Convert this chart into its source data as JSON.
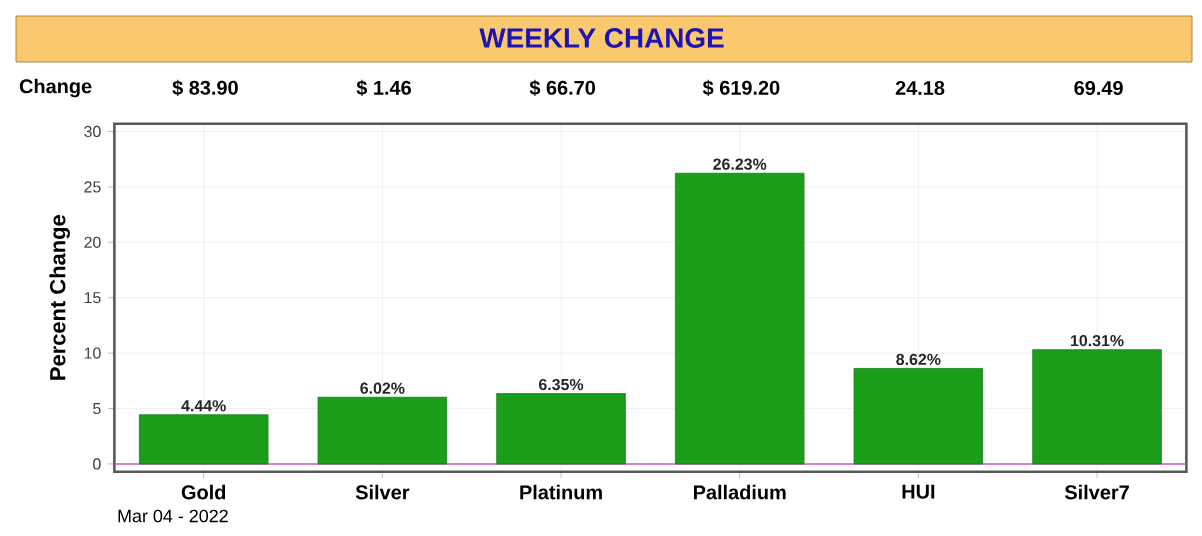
{
  "chart_data": {
    "type": "bar",
    "title": "WEEKLY CHANGE",
    "ylabel": "Percent Change",
    "categories": [
      "Gold",
      "Silver",
      "Platinum",
      "Palladium",
      "HUI",
      "Silver7"
    ],
    "values": [
      4.44,
      6.02,
      6.35,
      26.23,
      8.62,
      10.31
    ],
    "value_labels": [
      "4.44%",
      "6.02%",
      "6.35%",
      "26.23%",
      "8.62%",
      "10.31%"
    ],
    "color": "#1a9e1a",
    "ylim": [
      -0.7,
      30.7
    ],
    "yticks": [
      0,
      5,
      10,
      15,
      20,
      25,
      30
    ],
    "grid": true,
    "ref_lines": [
      {
        "axis": "y",
        "value": 0,
        "color": "#c060c0"
      }
    ],
    "annotations": [
      "Change",
      "$ 83.90",
      "$ 1.46",
      "$ 66.70",
      "$ 619.20",
      "24.18",
      "69.49",
      "Mar 04 - 2022"
    ]
  }
}
